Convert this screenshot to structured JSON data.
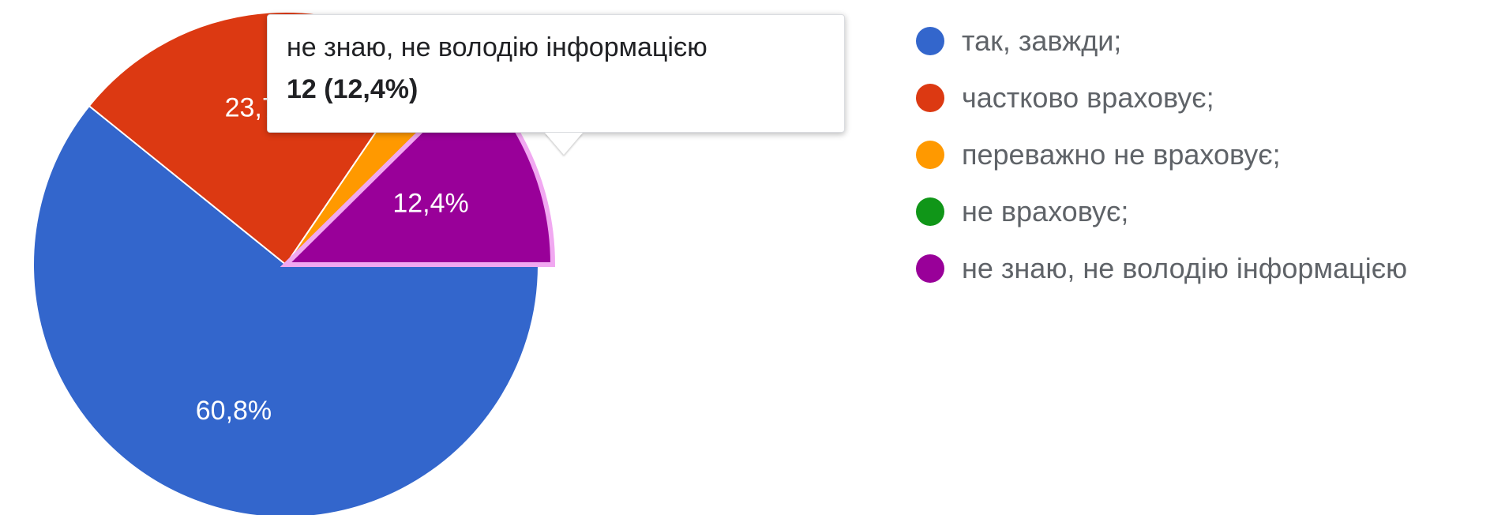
{
  "chart_data": {
    "type": "pie",
    "categories": [
      "так, завжди;",
      "частково враховує;",
      "переважно не враховує;",
      "не враховує;",
      "не знаю, не володію інформацією"
    ],
    "values": [
      60.8,
      23.7,
      3.1,
      0,
      12.4
    ],
    "slice_labels": [
      "60,8%",
      "23,7%",
      "",
      "",
      "12,4%"
    ],
    "colors": [
      "#3366cc",
      "#dc3912",
      "#ff9900",
      "#109618",
      "#990099"
    ],
    "legend_position": "right",
    "highlighted_index": 4
  },
  "tooltip": {
    "title": "не знаю, не володію інформацією",
    "value": "12 (12,4%)"
  }
}
